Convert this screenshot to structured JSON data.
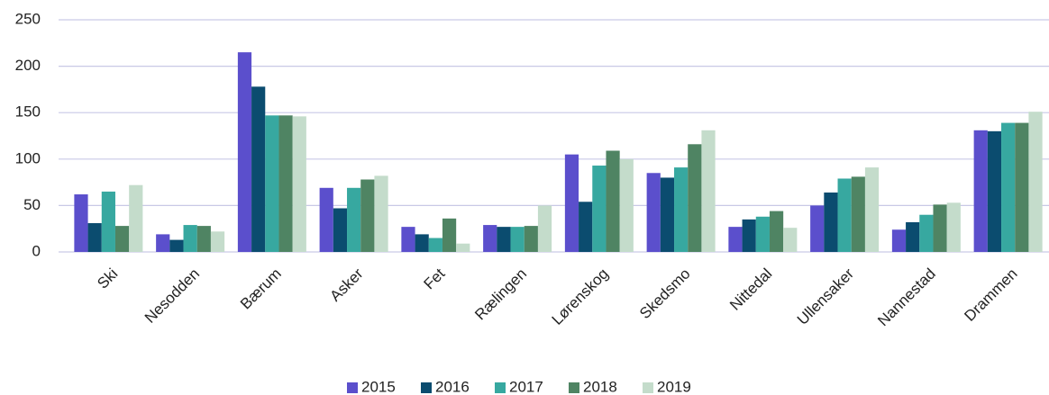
{
  "chart_data": {
    "type": "bar",
    "categories": [
      "Ski",
      "Nesodden",
      "Bærum",
      "Asker",
      "Fet",
      "Rælingen",
      "Lørenskog",
      "Skedsmo",
      "Nittedal",
      "Ullensaker",
      "Nannestad",
      "Drammen"
    ],
    "series": [
      {
        "name": "2015",
        "color": "#5b4fcc",
        "values": [
          62,
          19,
          215,
          69,
          27,
          29,
          105,
          85,
          27,
          50,
          24,
          131
        ]
      },
      {
        "name": "2016",
        "color": "#0b4c6f",
        "values": [
          31,
          13,
          178,
          47,
          19,
          27,
          54,
          80,
          35,
          64,
          32,
          130
        ]
      },
      {
        "name": "2017",
        "color": "#37a8a0",
        "values": [
          65,
          29,
          147,
          69,
          15,
          27,
          93,
          91,
          38,
          79,
          40,
          139
        ]
      },
      {
        "name": "2018",
        "color": "#4f8463",
        "values": [
          28,
          28,
          147,
          78,
          36,
          28,
          109,
          116,
          44,
          81,
          51,
          139
        ]
      },
      {
        "name": "2019",
        "color": "#c4dccb",
        "values": [
          72,
          22,
          146,
          82,
          9,
          50,
          100,
          131,
          26,
          91,
          53,
          151
        ]
      }
    ],
    "ylim": [
      0,
      250
    ],
    "yticks": [
      0,
      50,
      100,
      150,
      200,
      250
    ],
    "grid": true,
    "legend": "bottom"
  }
}
